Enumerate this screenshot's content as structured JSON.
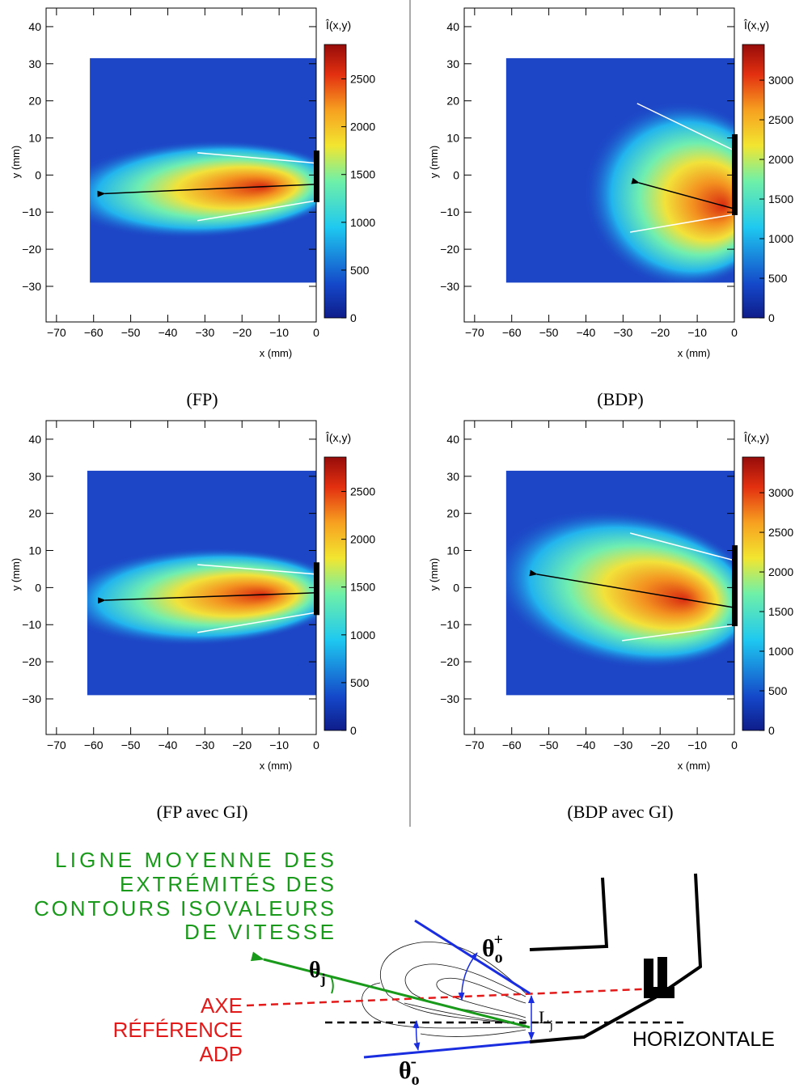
{
  "chart_data": [
    {
      "type": "heatmap",
      "caption": "(FP)",
      "xlabel": "x (mm)",
      "ylabel": "y (mm)",
      "colorbar_label": "Î(x,y)",
      "xlim": [
        -72.8,
        0
      ],
      "ylim": [
        -39.6,
        45
      ],
      "xticks": [
        {
          "value": -70,
          "label": "−70"
        },
        {
          "value": -60,
          "label": "−60"
        },
        {
          "value": -50,
          "label": "−50"
        },
        {
          "value": -40,
          "label": "−40"
        },
        {
          "value": -30,
          "label": "−30"
        },
        {
          "value": -20,
          "label": "−20"
        },
        {
          "value": -10,
          "label": "−10"
        },
        0
      ],
      "yticks": [
        40,
        30,
        20,
        10,
        0,
        {
          "value": -10,
          "label": "−10"
        },
        {
          "value": -20,
          "label": "−20"
        },
        {
          "value": -30,
          "label": "−30"
        }
      ],
      "zlim": [
        0,
        2860
      ],
      "zticks": [
        0,
        500,
        1000,
        1500,
        2000,
        2500
      ],
      "image_region": {
        "x": [
          -61,
          0
        ],
        "y": [
          -29,
          31.5
        ]
      },
      "arrow": {
        "x": [
          0,
          -57
        ],
        "y": [
          -2.5,
          -5
        ]
      },
      "lines": [
        {
          "x": [
            -32,
            0
          ],
          "y": [
            6,
            3.2
          ]
        },
        {
          "x": [
            -32,
            0
          ],
          "y": [
            -12.3,
            -6.9
          ]
        }
      ],
      "nozzle": {
        "y": [
          6.6,
          -7.3
        ]
      }
    },
    {
      "type": "heatmap",
      "caption": "(BDP)",
      "xlabel": "x (mm)",
      "ylabel": "y (mm)",
      "colorbar_label": "Î(x,y)",
      "xlim": [
        -72.8,
        0
      ],
      "ylim": [
        -39.6,
        45
      ],
      "xticks": [
        {
          "value": -70,
          "label": "−70"
        },
        {
          "value": -60,
          "label": "−60"
        },
        {
          "value": -50,
          "label": "−50"
        },
        {
          "value": -40,
          "label": "−40"
        },
        {
          "value": -30,
          "label": "−30"
        },
        {
          "value": -20,
          "label": "−20"
        },
        {
          "value": -10,
          "label": "−10"
        },
        0
      ],
      "yticks": [
        40,
        30,
        20,
        10,
        0,
        {
          "value": -10,
          "label": "−10"
        },
        {
          "value": -20,
          "label": "−20"
        },
        {
          "value": -30,
          "label": "−30"
        }
      ],
      "zlim": [
        0,
        3450
      ],
      "zticks": [
        0,
        500,
        1000,
        1500,
        2000,
        2500,
        3000
      ],
      "image_region": {
        "x": [
          -61.5,
          0
        ],
        "y": [
          -29,
          31.5
        ]
      },
      "arrow": {
        "x": [
          0,
          -25.7
        ],
        "y": [
          -9.1,
          -2.1
        ]
      },
      "lines": [
        {
          "x": [
            -26.2,
            0
          ],
          "y": [
            19.3,
            6.6
          ]
        },
        {
          "x": [
            -28.1,
            0
          ],
          "y": [
            -15.4,
            -10.6
          ]
        }
      ],
      "nozzle": {
        "y": [
          11,
          -10.8
        ]
      }
    },
    {
      "type": "heatmap",
      "caption": "(FP avec GI)",
      "xlabel": "x (mm)",
      "ylabel": "y (mm)",
      "colorbar_label": "Î(x,y)",
      "xlim": [
        -72.8,
        0
      ],
      "ylim": [
        -39.6,
        45
      ],
      "xticks": [
        {
          "value": -70,
          "label": "−70"
        },
        {
          "value": -60,
          "label": "−60"
        },
        {
          "value": -50,
          "label": "−50"
        },
        {
          "value": -40,
          "label": "−40"
        },
        {
          "value": -30,
          "label": "−30"
        },
        {
          "value": -20,
          "label": "−20"
        },
        {
          "value": -10,
          "label": "−10"
        },
        0
      ],
      "yticks": [
        40,
        30,
        20,
        10,
        0,
        {
          "value": -10,
          "label": "−10"
        },
        {
          "value": -20,
          "label": "−20"
        },
        {
          "value": -30,
          "label": "−30"
        }
      ],
      "zlim": [
        0,
        2860
      ],
      "zticks": [
        0,
        500,
        1000,
        1500,
        2000,
        2500
      ],
      "image_region": {
        "x": [
          -61.7,
          0
        ],
        "y": [
          -29,
          31.5
        ]
      },
      "arrow": {
        "x": [
          0,
          -56.9
        ],
        "y": [
          -1.4,
          -3.4
        ]
      },
      "lines": [
        {
          "x": [
            -32,
            0
          ],
          "y": [
            6.2,
            3.6
          ]
        },
        {
          "x": [
            -32,
            0
          ],
          "y": [
            -12.1,
            -6.7
          ]
        }
      ],
      "nozzle": {
        "y": [
          6.8,
          -7.4
        ]
      }
    },
    {
      "type": "heatmap",
      "caption": "(BDP avec GI)",
      "xlabel": "x (mm)",
      "ylabel": "y (mm)",
      "colorbar_label": "Î(x,y)",
      "xlim": [
        -72.8,
        0
      ],
      "ylim": [
        -39.6,
        45
      ],
      "xticks": [
        {
          "value": -70,
          "label": "−70"
        },
        {
          "value": -60,
          "label": "−60"
        },
        {
          "value": -50,
          "label": "−50"
        },
        {
          "value": -40,
          "label": "−40"
        },
        {
          "value": -30,
          "label": "−30"
        },
        {
          "value": -20,
          "label": "−20"
        },
        {
          "value": -10,
          "label": "−10"
        },
        0
      ],
      "yticks": [
        40,
        30,
        20,
        10,
        0,
        {
          "value": -10,
          "label": "−10"
        },
        {
          "value": -20,
          "label": "−20"
        },
        {
          "value": -30,
          "label": "−30"
        }
      ],
      "zlim": [
        0,
        3450
      ],
      "zticks": [
        0,
        500,
        1000,
        1500,
        2000,
        2500,
        3000
      ],
      "image_region": {
        "x": [
          -61.5,
          0
        ],
        "y": [
          -29,
          31.5
        ]
      },
      "arrow": {
        "x": [
          0,
          -53.2
        ],
        "y": [
          -5.4,
          3.6
        ]
      },
      "lines": [
        {
          "x": [
            -28.1,
            0
          ],
          "y": [
            14.7,
            7.3
          ]
        },
        {
          "x": [
            -30.3,
            0
          ],
          "y": [
            -14.3,
            -10.2
          ]
        }
      ],
      "nozzle": {
        "y": [
          11.4,
          -10.4
        ]
      }
    }
  ],
  "diagram": {
    "green_label": [
      "LIGNE MOYENNE DES",
      "EXTRÉMITÉS DES",
      "CONTOURS ISOVALEURS",
      "DE VITESSE"
    ],
    "red_label": [
      "AXE",
      "RÉFÉRENCE",
      "ADP"
    ],
    "horizontal_label": "HORIZONTALE",
    "symbols": [
      {
        "base": "θ",
        "sub": "o",
        "sup": "+"
      },
      {
        "base": "θ",
        "sub": "j"
      },
      {
        "base": "L",
        "sub": "j"
      },
      {
        "base": "θ",
        "sub": "o",
        "sup": "-"
      }
    ]
  }
}
